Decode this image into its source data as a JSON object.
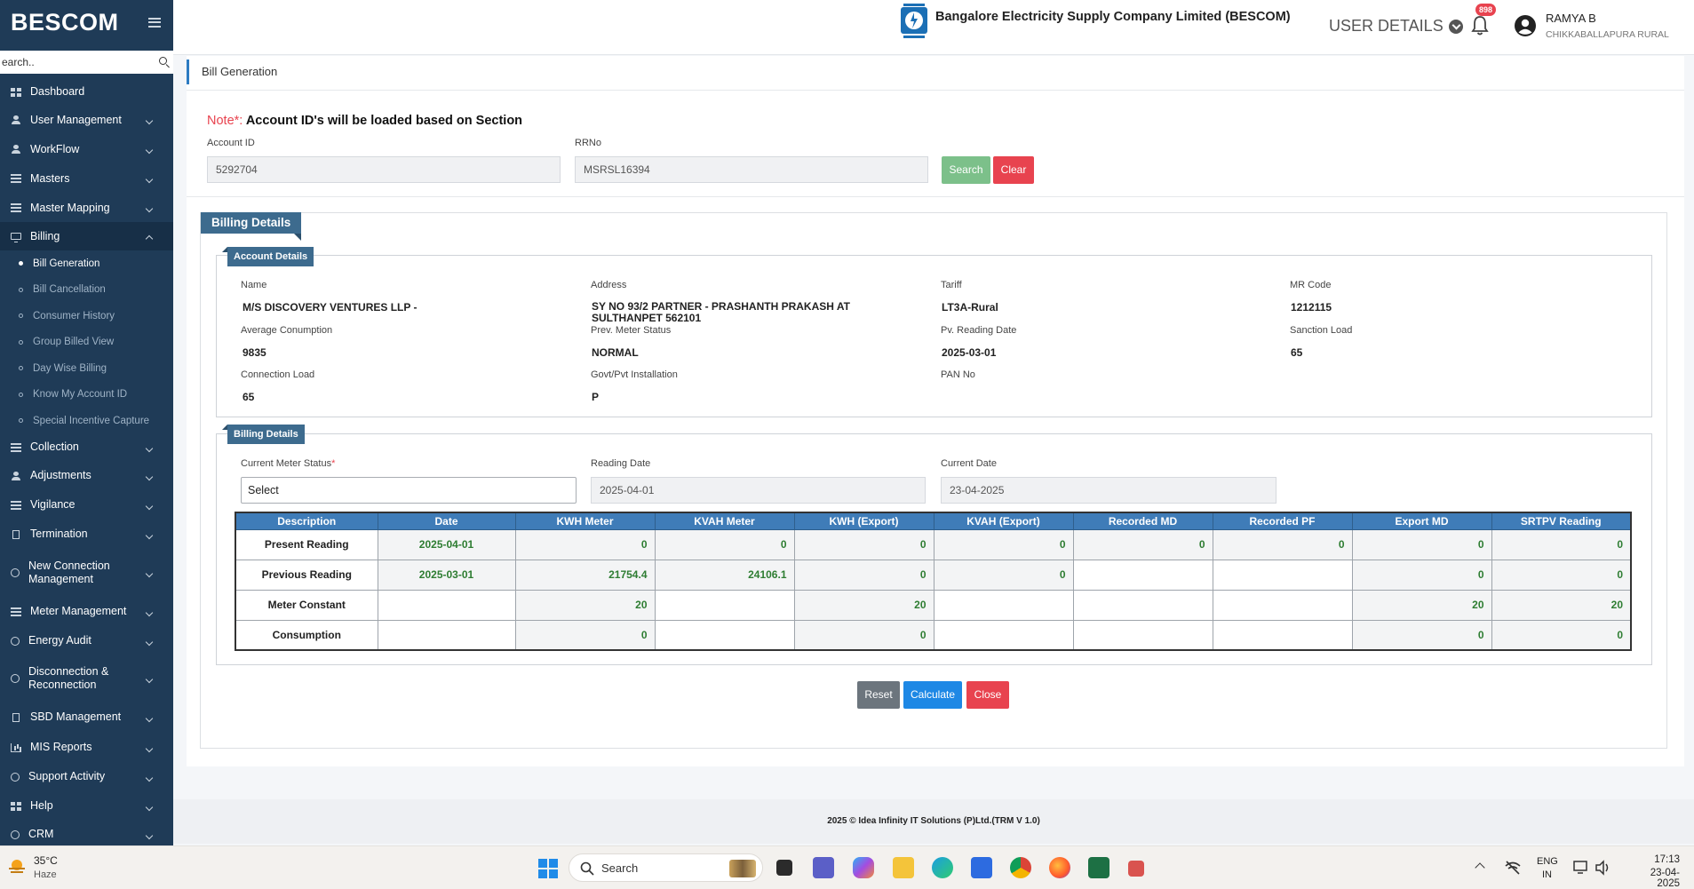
{
  "sidebar": {
    "brand": "BESCOM",
    "search_placeholder": "Search..",
    "search_value": "earch..",
    "items": [
      {
        "label": "Dashboard",
        "icon": "dashboard-icon"
      },
      {
        "label": "User Management",
        "icon": "user-icon"
      },
      {
        "label": "WorkFlow",
        "icon": "user-icon"
      },
      {
        "label": "Masters",
        "icon": "list-icon"
      },
      {
        "label": "Master Mapping",
        "icon": "list-icon"
      },
      {
        "label": "Billing",
        "icon": "monitor-icon"
      },
      {
        "label": "Collection",
        "icon": "list-icon"
      },
      {
        "label": "Adjustments",
        "icon": "users-icon"
      },
      {
        "label": "Vigilance",
        "icon": "vigilance-icon"
      },
      {
        "label": "Termination",
        "icon": "doc-icon"
      },
      {
        "label": "New Connection Management",
        "icon": "circle-icon"
      },
      {
        "label": "Meter Management",
        "icon": "list-icon"
      },
      {
        "label": "Energy Audit",
        "icon": "cogs-icon"
      },
      {
        "label": "Disconnection & Reconnection",
        "icon": "link-icon"
      },
      {
        "label": "SBD Management",
        "icon": "doc-icon"
      },
      {
        "label": "MIS Reports",
        "icon": "chart-icon"
      },
      {
        "label": "Support Activity",
        "icon": "circle-icon"
      },
      {
        "label": "Help",
        "icon": "grid-icon"
      },
      {
        "label": "CRM",
        "icon": "circle-icon"
      }
    ],
    "billing_sub": [
      "Bill Generation",
      "Bill Cancellation",
      "Consumer History",
      "Group Billed View",
      "Day Wise Billing",
      "Know My Account ID",
      "Special Incentive Capture"
    ]
  },
  "header": {
    "company": "Bangalore Electricity Supply Company Limited (BESCOM)",
    "user_details": "USER DETAILS",
    "notification_count": "898",
    "user_name": "RAMYA B",
    "user_location": "CHIKKABALLAPURA RURAL"
  },
  "page": {
    "title": "Bill Generation",
    "note_label": "Note*:",
    "note_text": "Account ID's will be loaded based on Section",
    "account_id_label": "Account ID",
    "account_id_value": "5292704",
    "rrno_label": "RRNo",
    "rrno_value": "MSRSL16394",
    "search_btn": "Search",
    "clear_btn": "Clear"
  },
  "billing_details_title": "Billing Details",
  "account_details": {
    "title": "Account Details",
    "name_label": "Name",
    "name": "M/S DISCOVERY VENTURES LLP -",
    "address_label": "Address",
    "address": "SY NO 93/2  PARTNER - PRASHANTH PRAKASH AT SULTHANPET 562101",
    "tariff_label": "Tariff",
    "tariff": "LT3A-Rural",
    "mr_code_label": "MR Code",
    "mr_code": "1212115",
    "avg_label": "Average Conumption",
    "avg": "9835",
    "prev_status_label": "Prev. Meter Status",
    "prev_status": "NORMAL",
    "pv_date_label": "Pv. Reading Date",
    "pv_date": "2025-03-01",
    "sanction_label": "Sanction Load",
    "sanction": "65",
    "connection_label": "Connection Load",
    "connection": "65",
    "govt_label": "Govt/Pvt Installation",
    "govt": "P",
    "pan_label": "PAN No",
    "pan": ""
  },
  "billing_section": {
    "title": "Billing Details",
    "meter_status_label": "Current Meter Status",
    "meter_status_required": "*",
    "meter_status_value": "Select",
    "reading_date_label": "Reading Date",
    "reading_date_value": "2025-04-01",
    "current_date_label": "Current Date",
    "current_date_value": "23-04-2025"
  },
  "table": {
    "headers": [
      "Description",
      "Date",
      "KWH Meter",
      "KVAH Meter",
      "KWH (Export)",
      "KVAH (Export)",
      "Recorded MD",
      "Recorded PF",
      "Export MD",
      "SRTPV Reading"
    ],
    "rows": [
      [
        "Present Reading",
        "2025-04-01",
        "0",
        "0",
        "0",
        "0",
        "0",
        "0",
        "0",
        "0"
      ],
      [
        "Previous Reading",
        "2025-03-01",
        "21754.4",
        "24106.1",
        "0",
        "0",
        "",
        "",
        "0",
        "0"
      ],
      [
        "Meter Constant",
        "",
        "20",
        "",
        "20",
        "",
        "",
        "",
        "20",
        "20"
      ],
      [
        "Consumption",
        "",
        "0",
        "",
        "0",
        "",
        "",
        "",
        "0",
        "0"
      ]
    ]
  },
  "actions": {
    "reset": "Reset",
    "calculate": "Calculate",
    "close": "Close"
  },
  "footer": {
    "text": "2025 © Idea Infinity IT Solutions (P)Ltd.(TRM V 1.0)"
  },
  "taskbar": {
    "temp": "35°C",
    "condition": "Haze",
    "search_label": "Search",
    "lang": "ENG",
    "region": "IN",
    "time": "17:13",
    "date": "23-04-2025"
  },
  "colors": {
    "sidebar": "#1f3b57",
    "accent": "#3d6b8e",
    "table_header": "#3f7cb8",
    "value_green": "#2e7d32",
    "danger": "#e8434f"
  }
}
